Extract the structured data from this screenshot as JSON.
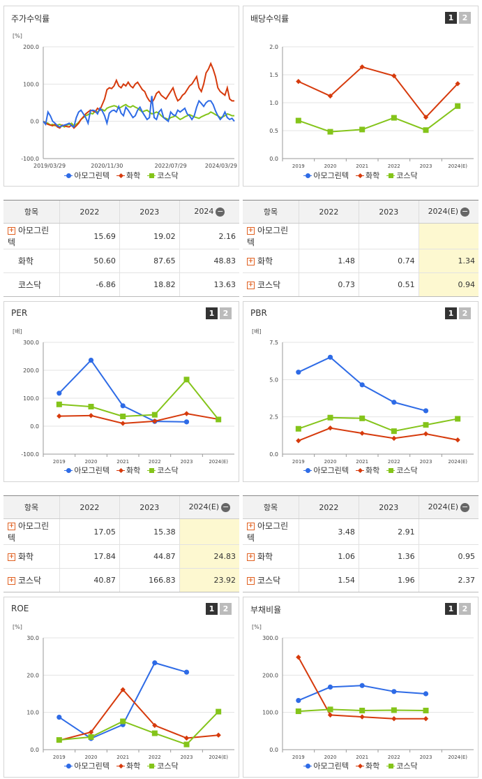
{
  "colors": {
    "amo": "#2e6be6",
    "hwa": "#d63a0c",
    "kos": "#84c41a",
    "grid": "#e3e3e3",
    "axis": "#999"
  },
  "legend": [
    "아모그린텍",
    "화학",
    "코스닥"
  ],
  "buttons": [
    "1",
    "2"
  ],
  "panels": {
    "stock": {
      "title": "주가수익률"
    },
    "div": {
      "title": "배당수익률"
    },
    "per": {
      "title": "PER"
    },
    "pbr": {
      "title": "PBR"
    },
    "roe": {
      "title": "ROE"
    },
    "debt": {
      "title": "부채비율"
    }
  },
  "tables": {
    "stock": {
      "headers": [
        "항목",
        "2022",
        "2023",
        "2024"
      ],
      "rows": [
        {
          "label": "아모그린텍",
          "plus": true,
          "values": [
            "15.69",
            "19.02",
            "2.16"
          ]
        },
        {
          "label": "화학",
          "plus": false,
          "values": [
            "50.60",
            "87.65",
            "48.83"
          ]
        },
        {
          "label": "코스닥",
          "plus": false,
          "values": [
            "-6.86",
            "18.82",
            "13.63"
          ]
        }
      ]
    },
    "div": {
      "headers": [
        "항목",
        "2022",
        "2023",
        "2024(E)"
      ],
      "rows": [
        {
          "label": "아모그린텍",
          "plus": true,
          "values": [
            "",
            "",
            ""
          ]
        },
        {
          "label": "화학",
          "plus": true,
          "values": [
            "1.48",
            "0.74",
            "1.34"
          ]
        },
        {
          "label": "코스닥",
          "plus": true,
          "values": [
            "0.73",
            "0.51",
            "0.94"
          ]
        }
      ]
    },
    "per": {
      "headers": [
        "항목",
        "2022",
        "2023",
        "2024(E)"
      ],
      "rows": [
        {
          "label": "아모그린텍",
          "plus": true,
          "values": [
            "17.05",
            "15.38",
            ""
          ]
        },
        {
          "label": "화학",
          "plus": true,
          "values": [
            "17.84",
            "44.87",
            "24.83"
          ]
        },
        {
          "label": "코스닥",
          "plus": true,
          "values": [
            "40.87",
            "166.83",
            "23.92"
          ]
        }
      ]
    },
    "pbr": {
      "headers": [
        "항목",
        "2022",
        "2023",
        "2024(E)"
      ],
      "rows": [
        {
          "label": "아모그린텍",
          "plus": true,
          "values": [
            "3.48",
            "2.91",
            ""
          ]
        },
        {
          "label": "화학",
          "plus": true,
          "values": [
            "1.06",
            "1.36",
            "0.95"
          ]
        },
        {
          "label": "코스닥",
          "plus": true,
          "values": [
            "1.54",
            "1.96",
            "2.37"
          ]
        }
      ]
    }
  },
  "chart_data": [
    {
      "id": "stock",
      "type": "line",
      "unit": "[%]",
      "ylim": [
        -100,
        200
      ],
      "yticks": [
        "-100.0",
        "0.0",
        "100.0",
        "200.0"
      ],
      "xticks": [
        "2019/03/29",
        "2020/11/30",
        "2022/07/29",
        "2024/03/29"
      ],
      "series": [
        {
          "name": "아모그린텍",
          "values": [
            0,
            -8,
            25,
            15,
            0,
            -5,
            -12,
            -15,
            -12,
            -10,
            -8,
            -5,
            -12,
            -15,
            10,
            25,
            30,
            20,
            10,
            -5,
            28,
            30,
            28,
            20,
            35,
            28,
            15,
            -5,
            22,
            28,
            30,
            25,
            40,
            22,
            15,
            38,
            30,
            20,
            10,
            15,
            30,
            38,
            25,
            15,
            5,
            10,
            68,
            10,
            5,
            25,
            32,
            10,
            5,
            0,
            25,
            18,
            15,
            30,
            25,
            30,
            35,
            20,
            15,
            5,
            15,
            38,
            55,
            48,
            40,
            50,
            55,
            55,
            45,
            28,
            15,
            5,
            12,
            25,
            10,
            5,
            8,
            0
          ]
        },
        {
          "name": "화학",
          "values": [
            0,
            -5,
            -8,
            -10,
            -12,
            -8,
            -15,
            -18,
            -10,
            -12,
            -14,
            -15,
            -10,
            -18,
            -12,
            -5,
            5,
            12,
            20,
            25,
            30,
            28,
            25,
            35,
            30,
            45,
            60,
            85,
            90,
            88,
            95,
            110,
            95,
            90,
            100,
            95,
            105,
            95,
            90,
            100,
            105,
            95,
            85,
            80,
            65,
            55,
            50,
            60,
            75,
            80,
            70,
            65,
            60,
            70,
            80,
            90,
            70,
            55,
            60,
            70,
            75,
            85,
            95,
            100,
            110,
            120,
            90,
            80,
            100,
            130,
            140,
            155,
            140,
            120,
            90,
            80,
            75,
            70,
            90,
            60,
            55,
            55
          ]
        },
        {
          "name": "코스닥",
          "values": [
            0,
            -3,
            -5,
            -10,
            -8,
            -12,
            -10,
            -8,
            -12,
            -15,
            -10,
            -8,
            -5,
            -12,
            -8,
            -3,
            5,
            10,
            15,
            18,
            22,
            20,
            28,
            25,
            30,
            32,
            28,
            35,
            38,
            40,
            42,
            40,
            35,
            38,
            42,
            45,
            40,
            38,
            42,
            38,
            35,
            30,
            25,
            28,
            30,
            25,
            20,
            22,
            25,
            22,
            15,
            10,
            8,
            5,
            10,
            12,
            15,
            10,
            5,
            8,
            12,
            15,
            18,
            15,
            12,
            10,
            8,
            12,
            15,
            18,
            20,
            25,
            22,
            18,
            15,
            10,
            12,
            15,
            20,
            18,
            15,
            15
          ]
        }
      ]
    },
    {
      "id": "div",
      "type": "line",
      "ylim": [
        0,
        2
      ],
      "yticks": [
        "0.0",
        "0.5",
        "1.0",
        "1.5",
        "2.0"
      ],
      "categories": [
        "2019",
        "2020",
        "2021",
        "2022",
        "2023",
        "2024(E)"
      ],
      "series": [
        {
          "name": "화학",
          "values": [
            1.38,
            1.12,
            1.64,
            1.48,
            0.74,
            1.34
          ]
        },
        {
          "name": "코스닥",
          "values": [
            0.68,
            0.48,
            0.52,
            0.73,
            0.51,
            0.94
          ]
        }
      ]
    },
    {
      "id": "per",
      "type": "line",
      "unit": "[배]",
      "ylim": [
        -100,
        300
      ],
      "yticks": [
        "-100.0",
        "0.0",
        "100.0",
        "200.0",
        "300.0"
      ],
      "categories": [
        "2019",
        "2020",
        "2021",
        "2022",
        "2023",
        "2024(E)"
      ],
      "series": [
        {
          "name": "아모그린텍",
          "values": [
            118,
            236,
            73,
            17.05,
            15.38,
            null
          ]
        },
        {
          "name": "화학",
          "values": [
            36,
            38,
            10,
            17.84,
            44.87,
            24.83
          ]
        },
        {
          "name": "코스닥",
          "values": [
            78,
            70,
            35,
            40.87,
            166.83,
            23.92
          ]
        }
      ]
    },
    {
      "id": "pbr",
      "type": "line",
      "unit": "[배]",
      "ylim": [
        0,
        7.5
      ],
      "yticks": [
        "0.0",
        "2.5",
        "5.0",
        "7.5"
      ],
      "categories": [
        "2019",
        "2020",
        "2021",
        "2022",
        "2023",
        "2024(E)"
      ],
      "series": [
        {
          "name": "아모그린텍",
          "values": [
            5.5,
            6.5,
            4.65,
            3.48,
            2.91,
            null
          ]
        },
        {
          "name": "화학",
          "values": [
            0.9,
            1.75,
            1.4,
            1.06,
            1.36,
            0.95
          ]
        },
        {
          "name": "코스닥",
          "values": [
            1.7,
            2.45,
            2.4,
            1.54,
            1.96,
            2.37
          ]
        }
      ]
    },
    {
      "id": "roe",
      "type": "line",
      "unit": "[%]",
      "ylim": [
        0,
        30
      ],
      "yticks": [
        "0.0",
        "10.0",
        "20.0",
        "30.0"
      ],
      "categories": [
        "2019",
        "2020",
        "2021",
        "2022",
        "2023",
        "2024(E)"
      ],
      "series": [
        {
          "name": "아모그린텍",
          "values": [
            8.7,
            3.0,
            6.7,
            23.3,
            20.8,
            null
          ]
        },
        {
          "name": "화학",
          "values": [
            2.5,
            4.7,
            16.1,
            6.5,
            3.1,
            3.9
          ]
        },
        {
          "name": "코스닥",
          "values": [
            2.6,
            3.4,
            7.6,
            4.4,
            1.4,
            10.2
          ]
        }
      ]
    },
    {
      "id": "debt",
      "type": "line",
      "unit": "[%]",
      "ylim": [
        0,
        300
      ],
      "yticks": [
        "0.0",
        "100.0",
        "200.0",
        "300.0"
      ],
      "categories": [
        "2019",
        "2020",
        "2021",
        "2022",
        "2023",
        "2024(E)"
      ],
      "series": [
        {
          "name": "아모그린텍",
          "values": [
            132,
            168,
            172,
            156,
            150,
            null
          ]
        },
        {
          "name": "화학",
          "values": [
            248,
            93,
            88,
            83,
            83,
            null
          ]
        },
        {
          "name": "코스닥",
          "values": [
            103,
            108,
            105,
            106,
            105,
            null
          ]
        }
      ]
    }
  ]
}
